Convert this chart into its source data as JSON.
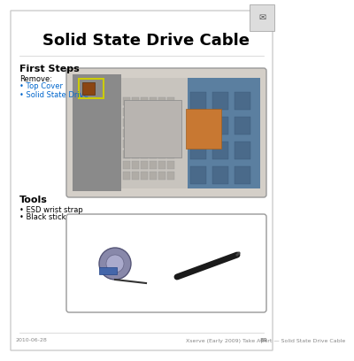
{
  "title": "Solid State Drive Cable",
  "background_color": "#ffffff",
  "page_background": "#f0f0f0",
  "first_steps_title": "First Steps",
  "remove_label": "Remove:",
  "remove_items": [
    "Top Cover",
    "Solid State Drive"
  ],
  "tools_title": "Tools",
  "tools_items": [
    "ESD wrist strap",
    "Black stick"
  ],
  "footer_left": "2010-06-28",
  "footer_right": "Xserve (Early 2009) Take Apart — Solid State Drive Cable",
  "footer_page": "89",
  "main_image_bg": "#e8e8e8",
  "tools_image_bg": "#ffffff",
  "link_color": "#0066cc",
  "border_color": "#999999",
  "text_color": "#000000",
  "footer_color": "#888888",
  "highlight_box_color": "#cccc00"
}
